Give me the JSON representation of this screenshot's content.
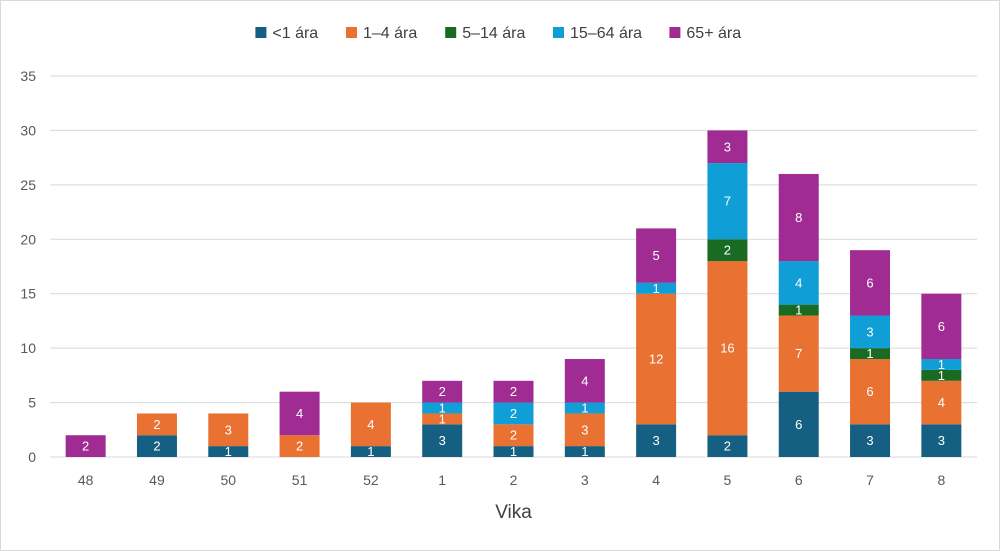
{
  "chart_data": {
    "type": "bar",
    "stacked": true,
    "title": "",
    "xlabel": "Vika",
    "ylabel": "",
    "ylim": [
      0,
      35
    ],
    "yticks": [
      0,
      5,
      10,
      15,
      20,
      25,
      30,
      35
    ],
    "grid": true,
    "legend_position": "top",
    "categories": [
      "48",
      "49",
      "50",
      "51",
      "52",
      "1",
      "2",
      "3",
      "4",
      "5",
      "6",
      "7",
      "8"
    ],
    "series": [
      {
        "name": "<1 ára",
        "color": "#156082",
        "values": [
          0,
          2,
          1,
          0,
          1,
          3,
          1,
          1,
          3,
          2,
          6,
          3,
          3
        ]
      },
      {
        "name": "1–4 ára",
        "color": "#E97132",
        "values": [
          0,
          2,
          3,
          2,
          4,
          1,
          2,
          3,
          12,
          16,
          7,
          6,
          4
        ]
      },
      {
        "name": "5–14 ára",
        "color": "#196B24",
        "values": [
          0,
          0,
          0,
          0,
          0,
          0,
          0,
          0,
          0,
          2,
          1,
          1,
          1
        ]
      },
      {
        "name": "15–64 ára",
        "color": "#0F9ED5",
        "values": [
          0,
          0,
          0,
          0,
          0,
          1,
          2,
          1,
          1,
          7,
          4,
          3,
          1
        ]
      },
      {
        "name": "65+ ára",
        "color": "#A02B93",
        "values": [
          2,
          0,
          0,
          4,
          0,
          2,
          2,
          4,
          5,
          3,
          8,
          6,
          6
        ]
      }
    ]
  }
}
